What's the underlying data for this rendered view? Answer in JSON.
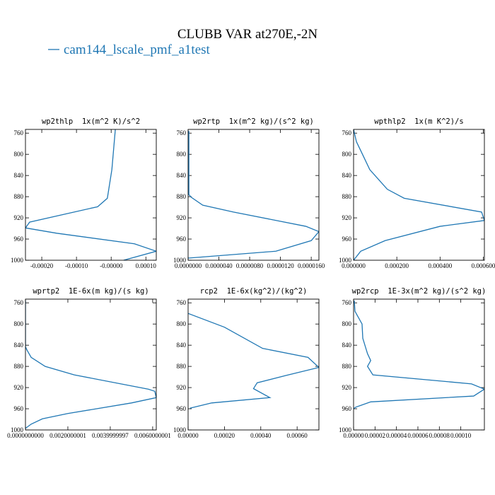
{
  "title": "CLUBB VAR at270E,-2N",
  "legend": {
    "name": "cam144_lscale_pmf_a1test",
    "color": "#1f77b4"
  },
  "chart_data": [
    {
      "type": "line",
      "title": "wp2thlp  1x(m^2 K)/s^2",
      "y": [
        753,
        829,
        883,
        899,
        928,
        939,
        949,
        969,
        983,
        1000
      ],
      "series": [
        {
          "color": "#1f77b4",
          "values": [
            1.2e-05,
            2e-06,
            -1.1e-05,
            -3.9e-05,
            -0.000235,
            -0.000247,
            -0.000157,
            6.7e-05,
            0.00013,
            3.6e-05
          ]
        }
      ],
      "xlim": [
        -0.000247,
        0.00013
      ],
      "xticks": [
        {
          "value": -0.0002,
          "label": "-0.00020"
        },
        {
          "value": -0.0001,
          "label": "-0.00010"
        },
        {
          "value": 0,
          "label": "-0.00000"
        },
        {
          "value": 0.0001,
          "label": "0.00010"
        }
      ],
      "ylim": [
        1000,
        753
      ],
      "yticks": [
        760,
        800,
        840,
        880,
        920,
        960,
        1000
      ]
    },
    {
      "type": "line",
      "title": "wp2rtp  1x(m^2 kg)/(s^2 kg)",
      "y": [
        756,
        876,
        881,
        896,
        909,
        936,
        946,
        963,
        983,
        996
      ],
      "series": [
        {
          "color": "#1f77b4",
          "values": [
            1e-07,
            1e-07,
            4e-07,
            1.9e-06,
            5.9e-06,
            1.53e-05,
            1.7e-05,
            1.6e-05,
            1.14e-05,
            0
          ]
        }
      ],
      "xlim": [
        0,
        1.7e-05
      ],
      "xticks": [
        {
          "value": 0,
          "label": "0.0000000"
        },
        {
          "value": 4e-06,
          "label": "0.0000040"
        },
        {
          "value": 8e-06,
          "label": "0.0000080"
        },
        {
          "value": 1.2e-05,
          "label": "0.0000120"
        },
        {
          "value": 1.6e-05,
          "label": "0.0000160"
        }
      ],
      "ylim": [
        1000,
        753
      ],
      "yticks": [
        760,
        800,
        840,
        880,
        920,
        960,
        1000
      ]
    },
    {
      "type": "line",
      "title": "wpthlp2  1x(m K^2)/s",
      "y": [
        753,
        776,
        793,
        829,
        866,
        883,
        909,
        925,
        936,
        963,
        983,
        1000
      ],
      "series": [
        {
          "color": "#1f77b4",
          "values": [
            0,
            1.3e-05,
            3.3e-05,
            7.5e-05,
            0.000156,
            0.000234,
            0.000592,
            0.000605,
            0.0004,
            0.000146,
            3.3e-05,
            0
          ]
        }
      ],
      "xlim": [
        0,
        0.000605
      ],
      "xticks": [
        {
          "value": 0,
          "label": "0.000000"
        },
        {
          "value": 0.0002,
          "label": "0.000200"
        },
        {
          "value": 0.0004,
          "label": "0.000400"
        },
        {
          "value": 0.0006,
          "label": "0.000600"
        }
      ],
      "ylim": [
        1000,
        753
      ],
      "yticks": [
        760,
        800,
        840,
        880,
        920,
        960,
        1000
      ]
    },
    {
      "type": "line",
      "title": "wprtp2  1E-6x(m kg)/(s kg)",
      "y": [
        756,
        843,
        849,
        863,
        880,
        896,
        923,
        927,
        939,
        949,
        969,
        979,
        989,
        997
      ],
      "series": [
        {
          "color": "#1f77b4",
          "values": [
            0,
            0,
            7e-05,
            0.00027,
            0.00093,
            0.0023,
            0.0058,
            0.0061,
            0.00617,
            0.005,
            0.002,
            0.0008,
            0.00027,
            0
          ]
        }
      ],
      "xlim": [
        0,
        0.00617
      ],
      "xticks": [
        {
          "value": 0,
          "label": "0.0000000000"
        },
        {
          "value": 0.002,
          "label": "0.0020000001"
        },
        {
          "value": 0.004,
          "label": "0.0039999997"
        },
        {
          "value": 0.006,
          "label": "0.0060000001"
        }
      ],
      "ylim": [
        1000,
        753
      ],
      "yticks": [
        760,
        800,
        840,
        880,
        920,
        960,
        1000
      ]
    },
    {
      "type": "line",
      "title": "rcp2  1E-6x(kg^2)/(kg^2)",
      "y": [
        780,
        806,
        846,
        863,
        882,
        897,
        911,
        922,
        939,
        949,
        959
      ],
      "series": [
        {
          "color": "#1f77b4",
          "values": [
            0,
            0.0002,
            0.00041,
            0.00066,
            0.00072,
            0.00054,
            0.00038,
            0.00036,
            0.00045,
            0.00013,
            1e-05
          ]
        }
      ],
      "xlim": [
        0,
        0.00072
      ],
      "xticks": [
        {
          "value": 0,
          "label": "0.00000"
        },
        {
          "value": 0.0002,
          "label": "0.00020"
        },
        {
          "value": 0.0004,
          "label": "0.00040"
        },
        {
          "value": 0.0006,
          "label": "0.00060"
        }
      ],
      "ylim": [
        1000,
        753
      ],
      "yticks": [
        760,
        800,
        840,
        880,
        920,
        960,
        1000
      ]
    },
    {
      "type": "line",
      "title": "wp2rcp  1E-3x(m^2 kg)/(s^2 kg)",
      "y": [
        756,
        776,
        800,
        827,
        856,
        869,
        880,
        896,
        913,
        923,
        936,
        947,
        957,
        960
      ],
      "series": [
        {
          "color": "#1f77b4",
          "values": [
            7e-07,
            1.3e-06,
            7.9e-06,
            8.6e-06,
            1.3e-05,
            1.6e-05,
            1.3e-05,
            1.8e-05,
            0.00011,
            0.000122,
            0.000112,
            1.6e-05,
            2e-06,
            0
          ]
        }
      ],
      "xlim": [
        0,
        0.000122
      ],
      "xticks": [
        {
          "value": 0,
          "label": "0.00000"
        },
        {
          "value": 2e-05,
          "label": "0.00002"
        },
        {
          "value": 4e-05,
          "label": "0.00004"
        },
        {
          "value": 6e-05,
          "label": "0.00006"
        },
        {
          "value": 8e-05,
          "label": "0.00008"
        },
        {
          "value": 0.0001,
          "label": "0.00010"
        }
      ],
      "ylim": [
        1000,
        753
      ],
      "yticks": [
        760,
        800,
        840,
        880,
        920,
        960,
        1000
      ]
    }
  ]
}
